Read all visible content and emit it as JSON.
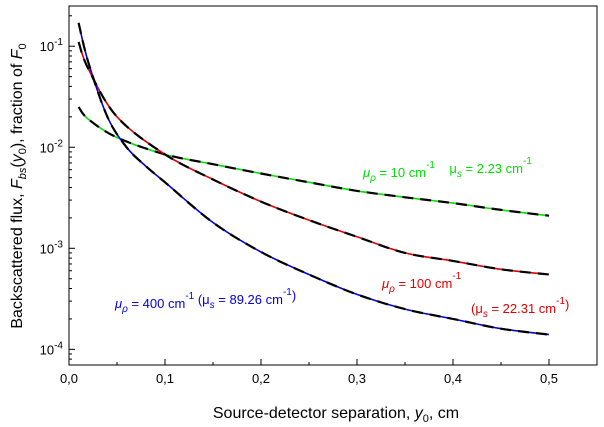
{
  "chart_data": {
    "type": "line",
    "xlabel": "Source-detector separation, y0, cm",
    "ylabel": "Backscattered flux, Fbs(y0), fraction of F0",
    "xlim": [
      0.0,
      0.55
    ],
    "ylim": [
      7e-05,
      0.25
    ],
    "yscale": "log",
    "x_ticks": [
      "0,0",
      "0,1",
      "0,2",
      "0,3",
      "0,4",
      "0,5"
    ],
    "y_ticks": [
      "10-4",
      "10-3",
      "10-2",
      "10-1"
    ],
    "grid": false,
    "series": [
      {
        "color": "#00e000",
        "x": [
          0.01,
          0.02,
          0.05,
          0.1,
          0.15,
          0.2,
          0.25,
          0.3,
          0.35,
          0.4,
          0.45,
          0.5
        ],
        "y": [
          0.025,
          0.019,
          0.0125,
          0.0085,
          0.0068,
          0.0055,
          0.0045,
          0.0037,
          0.0032,
          0.0028,
          0.0024,
          0.0021
        ]
      },
      {
        "color": "#e00000",
        "x": [
          0.01,
          0.02,
          0.05,
          0.1,
          0.15,
          0.2,
          0.25,
          0.3,
          0.35,
          0.4,
          0.45,
          0.5
        ],
        "y": [
          0.11,
          0.06,
          0.02,
          0.0085,
          0.0048,
          0.0029,
          0.0019,
          0.0013,
          0.0009,
          0.00075,
          0.00062,
          0.00055
        ]
      },
      {
        "color": "#0000e0",
        "x": [
          0.01,
          0.02,
          0.04,
          0.06,
          0.08,
          0.1,
          0.15,
          0.2,
          0.25,
          0.3,
          0.35,
          0.4,
          0.45,
          0.5
        ],
        "y": [
          0.17,
          0.07,
          0.02,
          0.01,
          0.0065,
          0.0045,
          0.0018,
          0.00092,
          0.00055,
          0.00035,
          0.00025,
          0.0002,
          0.00016,
          0.00014
        ]
      }
    ],
    "annotations": [
      {
        "color": "#00e000",
        "parts": [
          [
            "μ",
            ""
          ],
          [
            "ρ",
            "sub"
          ],
          [
            " = 10 cm",
            ""
          ],
          [
            "-1",
            "sup"
          ],
          [
            "    μ",
            ""
          ],
          [
            "s",
            "sub"
          ],
          [
            " = 2.23 cm",
            ""
          ],
          [
            "-1",
            "sup"
          ]
        ]
      },
      {
        "color": "#e00000",
        "parts": [
          [
            "μ",
            ""
          ],
          [
            "ρ",
            "sub"
          ],
          [
            " = 100 cm",
            ""
          ],
          [
            "-1",
            "sup"
          ]
        ]
      },
      {
        "color": "#e00000",
        "parts": [
          [
            "(μ",
            ""
          ],
          [
            "s",
            "sub"
          ],
          [
            " = 22.31 cm",
            ""
          ],
          [
            "-1",
            "sup"
          ],
          [
            ")",
            ""
          ]
        ]
      },
      {
        "color": "#0000e0",
        "parts": [
          [
            "μ",
            ""
          ],
          [
            "ρ",
            "sub"
          ],
          [
            " = 400 cm",
            ""
          ],
          [
            "-1",
            "sup"
          ],
          [
            " (μ",
            ""
          ],
          [
            "s",
            "sub"
          ],
          [
            " = 89.26 cm",
            ""
          ],
          [
            "-1",
            "sup"
          ],
          [
            ")",
            ""
          ]
        ]
      }
    ]
  }
}
